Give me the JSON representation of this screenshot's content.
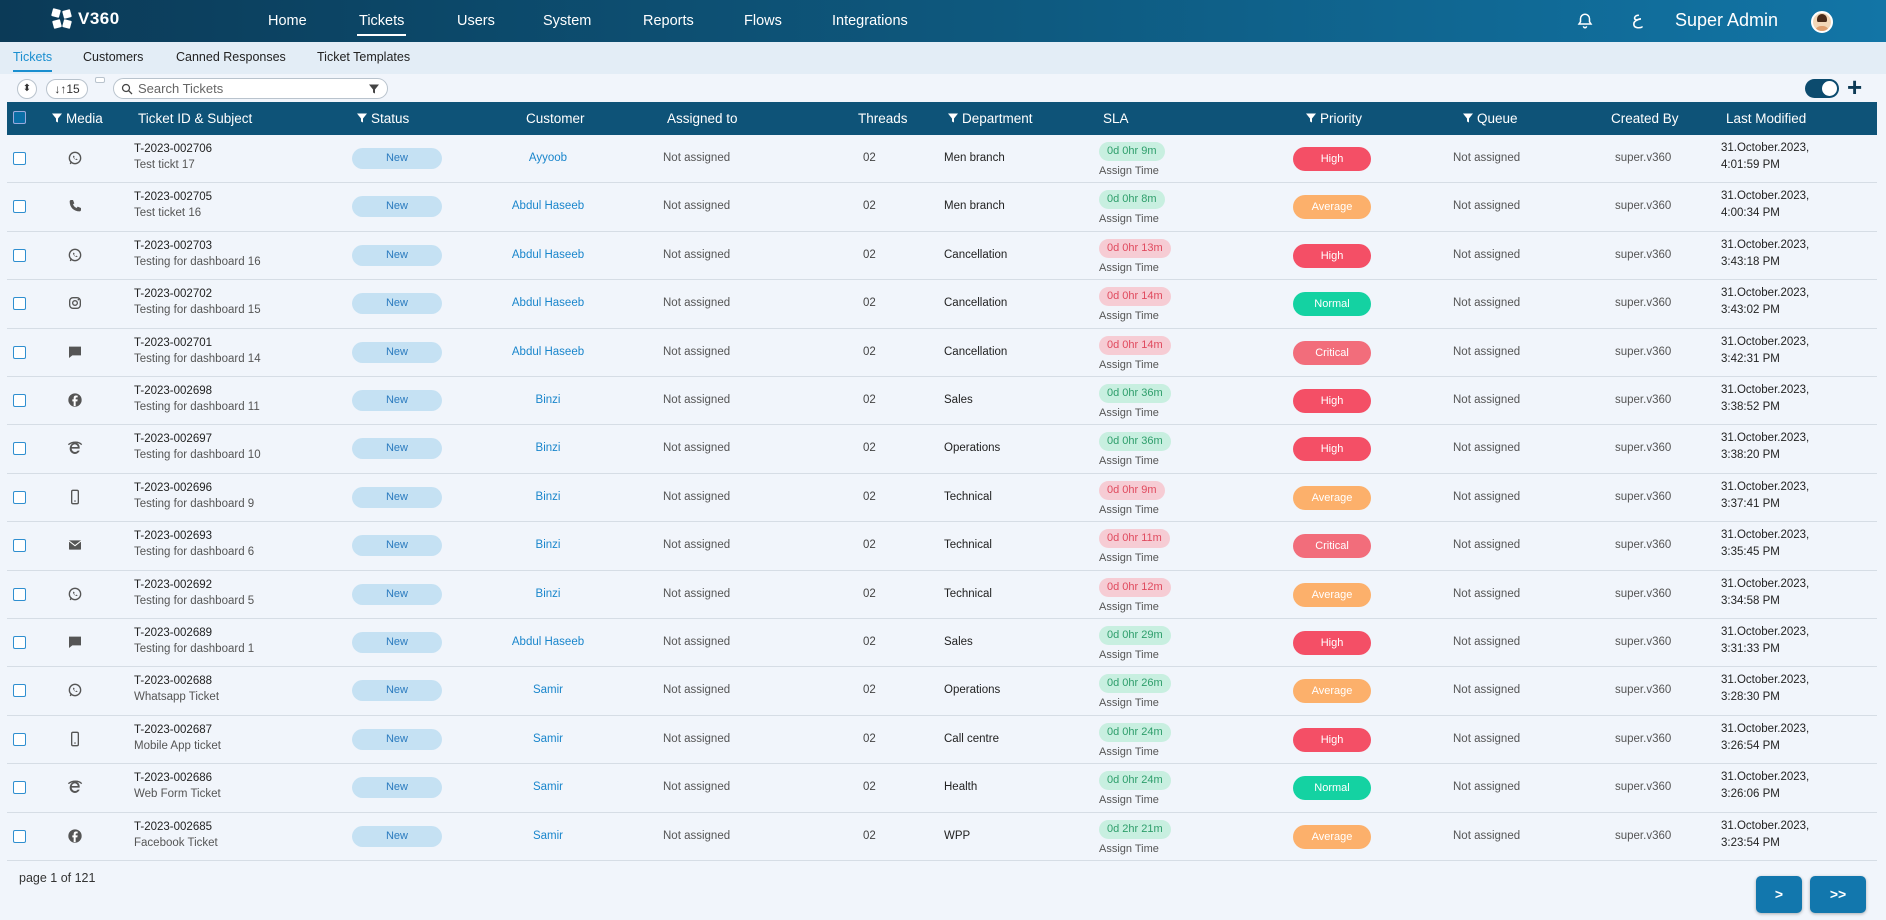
{
  "app": {
    "logo_text": "V360",
    "nav": [
      "Home",
      "Tickets",
      "Users",
      "System",
      "Reports",
      "Flows",
      "Integrations"
    ],
    "active_nav": "Tickets",
    "lang_glyph": "ع",
    "user_name": "Super Admin"
  },
  "subtabs": [
    "Tickets",
    "Customers",
    "Canned Responses",
    "Ticket Templates"
  ],
  "toolbar": {
    "sort_symbol": "⬍",
    "count_label": "↓↑15",
    "search_placeholder": "Search Tickets"
  },
  "columns": {
    "media": "Media",
    "ticket": "Ticket ID & Subject",
    "status": "Status",
    "customer": "Customer",
    "assigned": "Assigned to",
    "threads": "Threads",
    "department": "Department",
    "sla": "SLA",
    "priority": "Priority",
    "queue": "Queue",
    "created_by": "Created By",
    "last_modified": "Last Modified"
  },
  "colors": {
    "High": "#f44f66",
    "Average": "#fcb06b",
    "Normal": "#14d2a2",
    "Critical": "#f26d7b"
  },
  "rows": [
    {
      "media": "whatsapp-icon",
      "id": "T-2023-002706",
      "subject": "Test tickt 17",
      "status": "New",
      "customer": "Ayyoob",
      "assigned": "Not assigned",
      "threads": "02",
      "department": "Men branch",
      "sla": "0d 0hr 9m",
      "sla_state": "green",
      "sla_label": "Assign Time",
      "priority": "High",
      "queue": "Not assigned",
      "created_by": "super.v360",
      "mod_date": "31.October.2023,",
      "mod_time": "4:01:59 PM"
    },
    {
      "media": "phone-icon",
      "id": "T-2023-002705",
      "subject": "Test ticket 16",
      "status": "New",
      "customer": "Abdul Haseeb",
      "assigned": "Not assigned",
      "threads": "02",
      "department": "Men branch",
      "sla": "0d 0hr 8m",
      "sla_state": "green",
      "sla_label": "Assign Time",
      "priority": "Average",
      "queue": "Not assigned",
      "created_by": "super.v360",
      "mod_date": "31.October.2023,",
      "mod_time": "4:00:34 PM"
    },
    {
      "media": "whatsapp-icon",
      "id": "T-2023-002703",
      "subject": "Testing for dashboard 16",
      "status": "New",
      "customer": "Abdul Haseeb",
      "assigned": "Not assigned",
      "threads": "02",
      "department": "Cancellation",
      "sla": "0d 0hr 13m",
      "sla_state": "red",
      "sla_label": "Assign Time",
      "priority": "High",
      "queue": "Not assigned",
      "created_by": "super.v360",
      "mod_date": "31.October.2023,",
      "mod_time": "3:43:18 PM"
    },
    {
      "media": "instagram-icon",
      "id": "T-2023-002702",
      "subject": "Testing for dashboard 15",
      "status": "New",
      "customer": "Abdul Haseeb",
      "assigned": "Not assigned",
      "threads": "02",
      "department": "Cancellation",
      "sla": "0d 0hr 14m",
      "sla_state": "red",
      "sla_label": "Assign Time",
      "priority": "Normal",
      "queue": "Not assigned",
      "created_by": "super.v360",
      "mod_date": "31.October.2023,",
      "mod_time": "3:43:02 PM"
    },
    {
      "media": "chat-icon",
      "id": "T-2023-002701",
      "subject": "Testing for dashboard 14",
      "status": "New",
      "customer": "Abdul Haseeb",
      "assigned": "Not assigned",
      "threads": "02",
      "department": "Cancellation",
      "sla": "0d 0hr 14m",
      "sla_state": "red",
      "sla_label": "Assign Time",
      "priority": "Critical",
      "queue": "Not assigned",
      "created_by": "super.v360",
      "mod_date": "31.October.2023,",
      "mod_time": "3:42:31 PM"
    },
    {
      "media": "facebook-icon",
      "id": "T-2023-002698",
      "subject": "Testing for dashboard 11",
      "status": "New",
      "customer": "Binzi",
      "assigned": "Not assigned",
      "threads": "02",
      "department": "Sales",
      "sla": "0d 0hr 36m",
      "sla_state": "green",
      "sla_label": "Assign Time",
      "priority": "High",
      "queue": "Not assigned",
      "created_by": "super.v360",
      "mod_date": "31.October.2023,",
      "mod_time": "3:38:52 PM"
    },
    {
      "media": "web-icon",
      "id": "T-2023-002697",
      "subject": "Testing for dashboard 10",
      "status": "New",
      "customer": "Binzi",
      "assigned": "Not assigned",
      "threads": "02",
      "department": "Operations",
      "sla": "0d 0hr 36m",
      "sla_state": "green",
      "sla_label": "Assign Time",
      "priority": "High",
      "queue": "Not assigned",
      "created_by": "super.v360",
      "mod_date": "31.October.2023,",
      "mod_time": "3:38:20 PM"
    },
    {
      "media": "mobile-icon",
      "id": "T-2023-002696",
      "subject": "Testing for dashboard 9",
      "status": "New",
      "customer": "Binzi",
      "assigned": "Not assigned",
      "threads": "02",
      "department": "Technical",
      "sla": "0d 0hr 9m",
      "sla_state": "red",
      "sla_label": "Assign Time",
      "priority": "Average",
      "queue": "Not assigned",
      "created_by": "super.v360",
      "mod_date": "31.October.2023,",
      "mod_time": "3:37:41 PM"
    },
    {
      "media": "email-icon",
      "id": "T-2023-002693",
      "subject": "Testing for dashboard 6",
      "status": "New",
      "customer": "Binzi",
      "assigned": "Not assigned",
      "threads": "02",
      "department": "Technical",
      "sla": "0d 0hr 11m",
      "sla_state": "red",
      "sla_label": "Assign Time",
      "priority": "Critical",
      "queue": "Not assigned",
      "created_by": "super.v360",
      "mod_date": "31.October.2023,",
      "mod_time": "3:35:45 PM"
    },
    {
      "media": "whatsapp-icon",
      "id": "T-2023-002692",
      "subject": "Testing for dashboard 5",
      "status": "New",
      "customer": "Binzi",
      "assigned": "Not assigned",
      "threads": "02",
      "department": "Technical",
      "sla": "0d 0hr 12m",
      "sla_state": "red",
      "sla_label": "Assign Time",
      "priority": "Average",
      "queue": "Not assigned",
      "created_by": "super.v360",
      "mod_date": "31.October.2023,",
      "mod_time": "3:34:58 PM"
    },
    {
      "media": "chat-icon",
      "id": "T-2023-002689",
      "subject": "Testing for dashboard 1",
      "status": "New",
      "customer": "Abdul Haseeb",
      "assigned": "Not assigned",
      "threads": "02",
      "department": "Sales",
      "sla": "0d 0hr 29m",
      "sla_state": "green",
      "sla_label": "Assign Time",
      "priority": "High",
      "queue": "Not assigned",
      "created_by": "super.v360",
      "mod_date": "31.October.2023,",
      "mod_time": "3:31:33 PM"
    },
    {
      "media": "whatsapp-icon",
      "id": "T-2023-002688",
      "subject": "Whatsapp Ticket",
      "status": "New",
      "customer": "Samir",
      "assigned": "Not assigned",
      "threads": "02",
      "department": "Operations",
      "sla": "0d 0hr 26m",
      "sla_state": "green",
      "sla_label": "Assign Time",
      "priority": "Average",
      "queue": "Not assigned",
      "created_by": "super.v360",
      "mod_date": "31.October.2023,",
      "mod_time": "3:28:30 PM"
    },
    {
      "media": "mobile-icon",
      "id": "T-2023-002687",
      "subject": "Mobile App ticket",
      "status": "New",
      "customer": "Samir",
      "assigned": "Not assigned",
      "threads": "02",
      "department": "Call centre",
      "sla": "0d 0hr 24m",
      "sla_state": "green",
      "sla_label": "Assign Time",
      "priority": "High",
      "queue": "Not assigned",
      "created_by": "super.v360",
      "mod_date": "31.October.2023,",
      "mod_time": "3:26:54 PM"
    },
    {
      "media": "web-icon",
      "id": "T-2023-002686",
      "subject": "Web Form Ticket",
      "status": "New",
      "customer": "Samir",
      "assigned": "Not assigned",
      "threads": "02",
      "department": "Health",
      "sla": "0d 0hr 24m",
      "sla_state": "green",
      "sla_label": "Assign Time",
      "priority": "Normal",
      "queue": "Not assigned",
      "created_by": "super.v360",
      "mod_date": "31.October.2023,",
      "mod_time": "3:26:06 PM"
    },
    {
      "media": "facebook-icon",
      "id": "T-2023-002685",
      "subject": "Facebook Ticket",
      "status": "New",
      "customer": "Samir",
      "assigned": "Not assigned",
      "threads": "02",
      "department": "WPP",
      "sla": "0d 2hr 21m",
      "sla_state": "green",
      "sla_label": "Assign Time",
      "priority": "Average",
      "queue": "Not assigned",
      "created_by": "super.v360",
      "mod_date": "31.October.2023,",
      "mod_time": "3:23:54 PM"
    }
  ],
  "pagination": {
    "info": "page 1 of 121",
    "next": ">",
    "last": ">>"
  }
}
